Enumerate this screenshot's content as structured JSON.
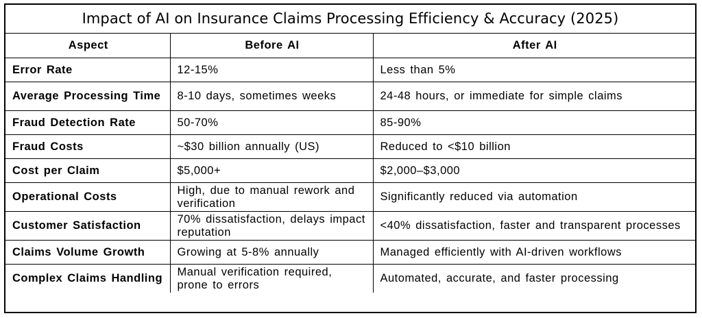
{
  "title": "Impact of AI on Insurance Claims Processing Efficiency & Accuracy (2025)",
  "columns": [
    "Aspect",
    "Before AI",
    "After AI"
  ],
  "rows": [
    {
      "aspect": "Error Rate",
      "before": "12-15%",
      "after": "Less than 5%"
    },
    {
      "aspect": "Average Processing Time",
      "before": "8-10 days, sometimes weeks",
      "after": "24-48 hours, or immediate for simple claims"
    },
    {
      "aspect": "Fraud Detection Rate",
      "before": "50-70%",
      "after": "85-90%"
    },
    {
      "aspect": "Fraud Costs",
      "before": "~$30 billion annually (US)",
      "after": "Reduced to <$10 billion"
    },
    {
      "aspect": "Cost per Claim",
      "before": "$5,000+",
      "after": "$2,000–$3,000"
    },
    {
      "aspect": "Operational Costs",
      "before": "High, due to manual rework and verification",
      "after": "Significantly reduced via automation"
    },
    {
      "aspect": "Customer Satisfaction",
      "before": "70% dissatisfaction, delays impact reputation",
      "after": "<40% dissatisfaction, faster and transparent processes"
    },
    {
      "aspect": "Claims Volume Growth",
      "before": "Growing at 5-8% annually",
      "after": "Managed efficiently with AI-driven workflows"
    },
    {
      "aspect": "Complex Claims Handling",
      "before": "Manual verification required, prone to errors",
      "after": "Automated, accurate, and faster processing"
    }
  ]
}
